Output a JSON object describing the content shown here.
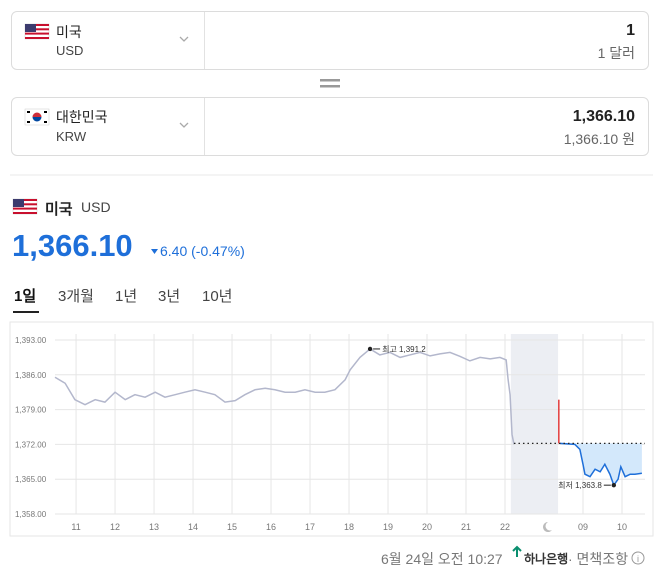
{
  "converter": {
    "from": {
      "country": "미국",
      "code": "USD",
      "amount": "1",
      "amount_unit": "1 달러"
    },
    "to": {
      "country": "대한민국",
      "code": "KRW",
      "amount": "1,366.10",
      "amount_unit": "1,366.10 원"
    }
  },
  "quote": {
    "country": "미국",
    "code": "USD",
    "price": "1,366.10",
    "change": "6.40 (-0.47%)"
  },
  "tabs": [
    "1일",
    "3개월",
    "1년",
    "3년",
    "10년"
  ],
  "footer": {
    "time": "6월 24일 오전 10:27",
    "bank": "하나은행",
    "disclaimer": "· 면책조항"
  },
  "chart_data": {
    "type": "line",
    "xlim": [
      10.46,
      25.59
    ],
    "ylim": [
      1358,
      1393
    ],
    "xticks": [
      11,
      12,
      13,
      14,
      15,
      16,
      17,
      18,
      19,
      20,
      21,
      22,
      {
        "value": 24,
        "label": "09"
      },
      {
        "value": 25,
        "label": "10"
      }
    ],
    "yticks": [
      {
        "value": 1358,
        "label": "1,358.00"
      },
      {
        "value": 1365,
        "label": "1,365.00"
      },
      {
        "value": 1372,
        "label": "1,372.00"
      },
      {
        "value": 1379,
        "label": "1,379.00"
      },
      {
        "value": 1386,
        "label": "1,386.00"
      },
      {
        "value": 1393,
        "label": "1,393.00"
      }
    ],
    "grid": true,
    "series": [
      {
        "color": "#b3b7cc",
        "x": [
          10.46,
          10.72,
          10.97,
          11.23,
          11.49,
          11.74,
          12.0,
          12.26,
          12.51,
          12.77,
          13.03,
          13.28,
          13.54,
          13.79,
          14.05,
          14.31,
          14.56,
          14.82,
          15.08,
          15.33,
          15.59,
          15.85,
          16.1,
          16.36,
          16.62,
          16.87,
          17.13,
          17.38,
          17.64,
          17.9,
          18.03,
          18.28,
          18.54,
          18.79,
          19.05,
          19.31,
          19.56,
          19.82,
          20.08,
          20.33,
          20.59,
          20.85,
          21.1,
          21.36,
          21.62,
          21.87,
          22.03,
          22.08,
          22.13,
          22.18,
          22.23
        ],
        "values": [
          1385.5,
          1384.3,
          1381,
          1380,
          1381,
          1380.5,
          1382.5,
          1381,
          1382,
          1381.5,
          1382.5,
          1381.5,
          1382,
          1382.5,
          1383,
          1382.5,
          1382,
          1380.5,
          1380.8,
          1382,
          1383,
          1383.3,
          1383,
          1382.5,
          1382.5,
          1383,
          1382.5,
          1382.5,
          1383,
          1385,
          1387,
          1389.5,
          1391.2,
          1390,
          1390.5,
          1389.5,
          1390,
          1390.5,
          1389.8,
          1390.2,
          1390.5,
          1389.7,
          1388.8,
          1389.5,
          1389.2,
          1389.5,
          1389,
          1385,
          1382,
          1374,
          1372
        ]
      },
      {
        "color": "#e23b3b",
        "x": [
          23.38,
          23.38
        ],
        "values": [
          1381,
          1372.2
        ]
      },
      {
        "color": "#1e6fd9",
        "fill": "#d3e8fb",
        "x": [
          23.41,
          23.79,
          23.92,
          24.0,
          24.05,
          24.18,
          24.31,
          24.44,
          24.56,
          24.69,
          24.79,
          24.9,
          24.97,
          25.08,
          25.21,
          25.33,
          25.51
        ],
        "values": [
          1372.2,
          1372,
          1371,
          1368,
          1366,
          1365.5,
          1367,
          1366.5,
          1368,
          1366,
          1363.8,
          1365,
          1367.5,
          1365.5,
          1366,
          1366,
          1366.2
        ]
      }
    ],
    "reference_line": {
      "value": 1372.2,
      "x": [
        22.23,
        25.59
      ]
    },
    "shaded_x": [
      22.15,
      23.36
    ],
    "annotations": [
      {
        "label": "최고 1,391.2",
        "x": 18.54,
        "value": 1391.2
      },
      {
        "label": "최저 1,363.8",
        "x": 24.79,
        "value": 1363.8
      }
    ]
  }
}
